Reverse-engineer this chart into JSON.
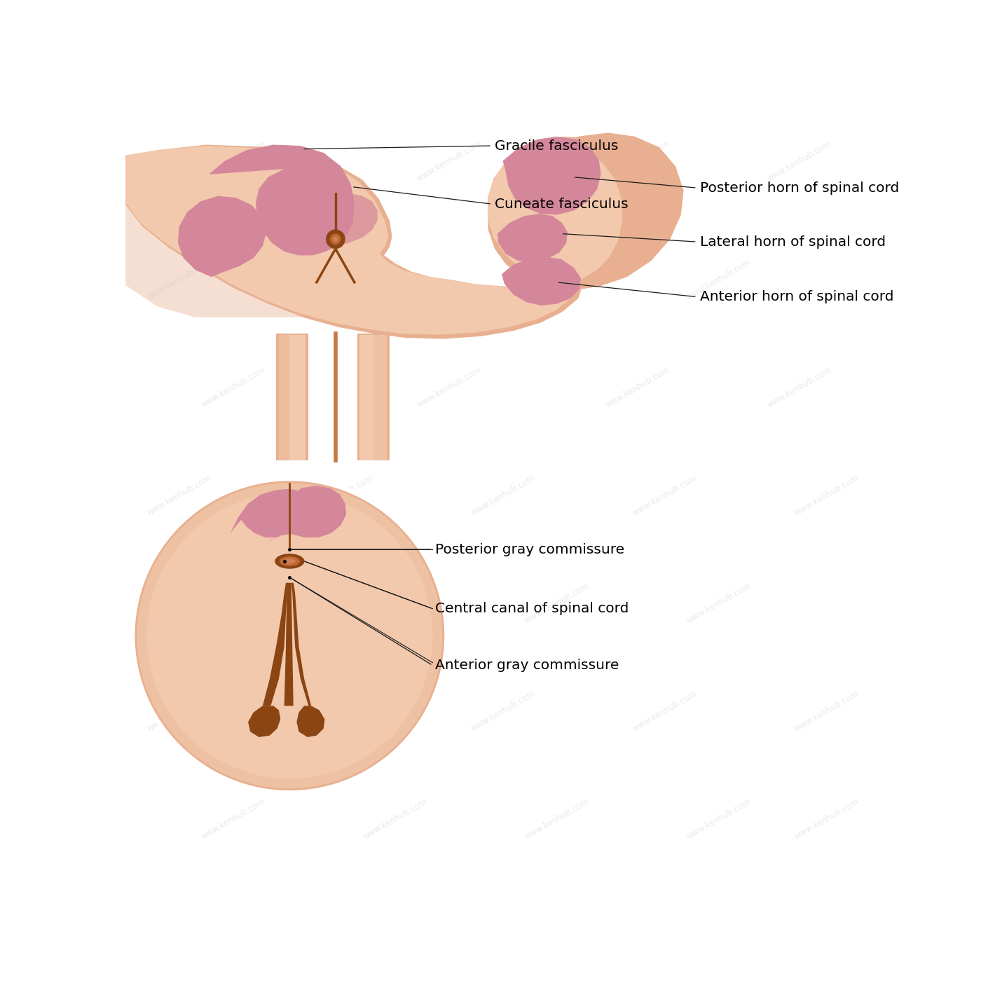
{
  "bg_color": "#ffffff",
  "skin_light": "#f2c9ac",
  "skin_mid": "#e8b090",
  "skin_dark": "#c87840",
  "skin_shadow": "#d4946a",
  "gray_pink": "#d4879a",
  "gray_pink_light": "#dfa0b0",
  "brown": "#b06030",
  "brown_dark": "#8b4513",
  "line_color": "#1a1a1a",
  "label_fontsize": 14.5,
  "labels": {
    "gracile_fasciculus": "Gracile fasciculus",
    "cuneate_fasciculus": "Cuneate fasciculus",
    "posterior_horn": "Posterior horn of spinal cord",
    "lateral_horn": "Lateral horn of spinal cord",
    "anterior_horn": "Anterior horn of spinal cord",
    "posterior_gray_commissure": "Posterior gray commissure",
    "central_canal": "Central canal of spinal cord",
    "anterior_gray_commissure": "Anterior gray commissure"
  },
  "kenhub_box_color": "#1976D2",
  "kenhub_text": "KEN\nHUB"
}
